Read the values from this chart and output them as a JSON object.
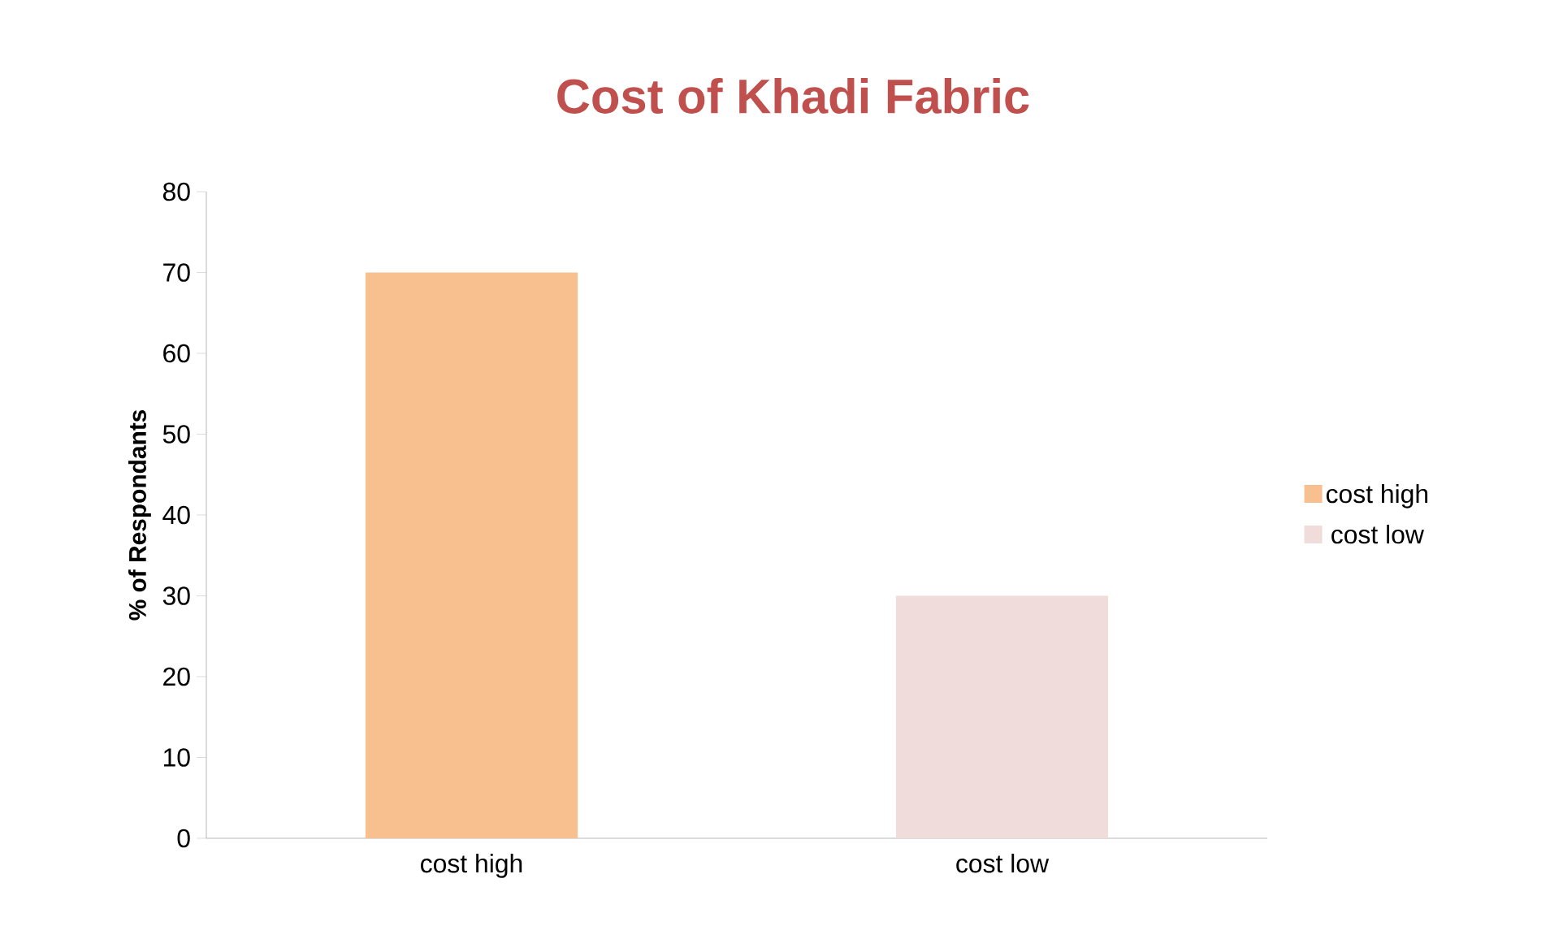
{
  "chart_data": {
    "type": "bar",
    "title": "Cost of Khadi Fabric",
    "ylabel": "% of Respondants",
    "categories": [
      "cost high",
      "cost low"
    ],
    "series": [
      {
        "name": "cost high",
        "color": "#f9c08f",
        "values": [
          70,
          null
        ]
      },
      {
        "name": "cost low",
        "color": "#f0dcdb",
        "values": [
          null,
          30
        ]
      }
    ],
    "ylim": [
      0,
      80
    ],
    "yticks": [
      0,
      10,
      20,
      30,
      40,
      50,
      60,
      70,
      80
    ],
    "grid": false,
    "legend": "right"
  }
}
